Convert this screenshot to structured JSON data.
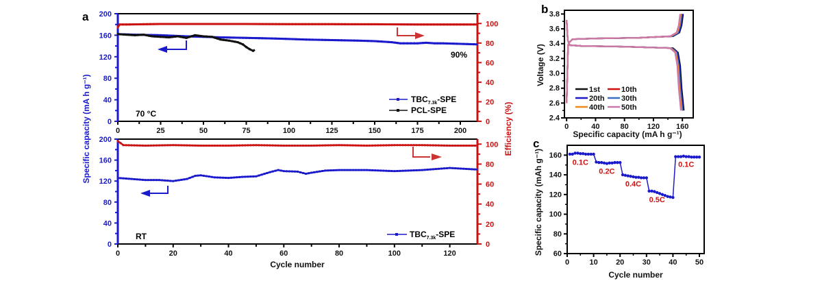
{
  "chart_data": [
    {
      "id": "a-top",
      "panel_label": "a",
      "type": "line",
      "xlabel": "",
      "ylabel": "Specific capacity (mA h g⁻¹)",
      "y2label": "Efficiency (%)",
      "xlim": [
        0,
        210
      ],
      "ylim": [
        0,
        200
      ],
      "y2lim": [
        0,
        110
      ],
      "xticks": [
        0,
        25,
        50,
        75,
        100,
        125,
        150,
        175,
        200
      ],
      "yticks": [
        0,
        40,
        80,
        120,
        160,
        200
      ],
      "y2ticks": [
        0,
        20,
        40,
        60,
        80,
        100
      ],
      "annotations": [
        "70 °C",
        "90%"
      ],
      "legend": {
        "position": "bottom-right",
        "entries": [
          "TBC7.3k-SPE",
          "PCL-SPE"
        ]
      },
      "series": [
        {
          "name": "TBC7.3k-SPE",
          "axis": "left",
          "color": "#1a1acc",
          "x": [
            0,
            10,
            25,
            40,
            50,
            60,
            75,
            90,
            100,
            110,
            125,
            140,
            150,
            160,
            165,
            175,
            180,
            185,
            190,
            200,
            210
          ],
          "y": [
            162,
            161,
            160,
            158,
            157,
            156,
            155,
            154,
            153,
            152,
            151,
            150,
            149,
            147,
            145,
            145,
            146,
            145,
            145,
            144,
            143
          ]
        },
        {
          "name": "PCL-SPE",
          "axis": "left",
          "color": "#111111",
          "x": [
            0,
            5,
            10,
            15,
            20,
            25,
            30,
            35,
            40,
            45,
            50,
            55,
            60,
            65,
            70,
            73,
            75,
            77,
            79,
            80
          ],
          "y": [
            162,
            161,
            160,
            161,
            158,
            157,
            156,
            158,
            155,
            160,
            158,
            157,
            152,
            150,
            147,
            143,
            138,
            134,
            131,
            133
          ]
        },
        {
          "name": "Efficiency",
          "axis": "right",
          "color": "#cc1111",
          "x": [
            0,
            1,
            5,
            25,
            50,
            75,
            100,
            125,
            150,
            175,
            200,
            210
          ],
          "y": [
            96,
            99,
            99,
            99.5,
            99.5,
            99.5,
            99.3,
            99.3,
            99.2,
            99,
            99,
            99
          ]
        }
      ]
    },
    {
      "id": "a-bottom",
      "panel_label": "",
      "type": "line",
      "xlabel": "Cycle number",
      "ylabel": "Specific capacity (mA h g⁻¹)",
      "y2label": "Efficiency (%)",
      "xlim": [
        0,
        130
      ],
      "ylim": [
        0,
        200
      ],
      "y2lim": [
        0,
        105
      ],
      "xticks": [
        0,
        20,
        40,
        60,
        80,
        100,
        120
      ],
      "yticks": [
        0,
        40,
        80,
        120,
        160,
        200
      ],
      "y2ticks": [
        0,
        20,
        40,
        60,
        80,
        100
      ],
      "annotations": [
        "RT"
      ],
      "legend": {
        "position": "bottom-right",
        "entries": [
          "TBC7.3k-SPE"
        ]
      },
      "series": [
        {
          "name": "TBC7.3k-SPE",
          "axis": "left",
          "color": "#1a1acc",
          "x": [
            0,
            5,
            10,
            15,
            20,
            25,
            28,
            30,
            35,
            40,
            45,
            50,
            55,
            58,
            60,
            65,
            68,
            70,
            75,
            80,
            90,
            100,
            110,
            120,
            130
          ],
          "y": [
            126,
            124,
            122,
            122,
            120,
            124,
            130,
            131,
            127,
            126,
            128,
            129,
            137,
            141,
            139,
            138,
            134,
            136,
            140,
            141,
            141,
            139,
            141,
            145,
            142
          ]
        },
        {
          "name": "Efficiency",
          "axis": "right",
          "color": "#cc1111",
          "x": [
            0,
            2,
            10,
            20,
            30,
            40,
            50,
            60,
            70,
            80,
            90,
            100,
            110,
            120,
            130
          ],
          "y": [
            103,
            99,
            98.5,
            99,
            98.5,
            98.5,
            99,
            98.5,
            98.5,
            99,
            98.5,
            99,
            99,
            98.5,
            98.5
          ]
        }
      ]
    },
    {
      "id": "b",
      "panel_label": "b",
      "type": "line",
      "xlabel": "Specific capacity (mA h g⁻¹)",
      "ylabel": "Voltage (V)",
      "xlim": [
        -3,
        175
      ],
      "ylim": [
        2.4,
        3.85
      ],
      "xticks": [
        0,
        40,
        80,
        120,
        160
      ],
      "yticks": [
        2.4,
        2.6,
        2.8,
        3.0,
        3.2,
        3.4,
        3.6,
        3.8
      ],
      "legend": {
        "position": "bottom-left",
        "entries": [
          "1st",
          "10th",
          "20th",
          "30th",
          "40th",
          "50th"
        ]
      },
      "series": [
        {
          "name": "1st",
          "color": "#111111",
          "end_capacity": 162
        },
        {
          "name": "10th",
          "color": "#cc1111",
          "end_capacity": 160
        },
        {
          "name": "20th",
          "color": "#1a1acc",
          "end_capacity": 161
        },
        {
          "name": "30th",
          "color": "#3a6ec0",
          "end_capacity": 160
        },
        {
          "name": "40th",
          "color": "#ee8a1a",
          "end_capacity": 159
        },
        {
          "name": "50th",
          "color": "#cc77aa",
          "end_capacity": 158
        }
      ]
    },
    {
      "id": "c",
      "panel_label": "c",
      "type": "line",
      "title": "Specific capacity (mA h g⁻¹)",
      "xlabel": "Cycle number",
      "ylabel": "Specific capacity (mAh g⁻¹)",
      "xlim": [
        0,
        51
      ],
      "ylim": [
        60,
        170
      ],
      "xticks": [
        0,
        10,
        20,
        30,
        40,
        50
      ],
      "yticks": [
        60,
        80,
        100,
        120,
        140,
        160
      ],
      "rate_labels": [
        {
          "text": "0.1C",
          "x": 5,
          "y": 153
        },
        {
          "text": "0.2C",
          "x": 15,
          "y": 144
        },
        {
          "text": "0.4C",
          "x": 25,
          "y": 131
        },
        {
          "text": "0.5C",
          "x": 34,
          "y": 115
        },
        {
          "text": "0.1C",
          "x": 45,
          "y": 151
        }
      ],
      "series": [
        {
          "name": "TBC7.3k-SPE",
          "color": "#1a1acc",
          "x": [
            1,
            2,
            3,
            4,
            5,
            6,
            7,
            8,
            9,
            10,
            11,
            12,
            13,
            14,
            15,
            16,
            17,
            18,
            19,
            20,
            21,
            22,
            23,
            24,
            25,
            26,
            27,
            28,
            29,
            30,
            31,
            32,
            33,
            34,
            35,
            36,
            37,
            38,
            39,
            40,
            41,
            42,
            43,
            44,
            45,
            46,
            47,
            48,
            49,
            50
          ],
          "y": [
            161,
            161,
            162,
            162,
            161.5,
            161.5,
            161,
            161,
            161,
            161,
            153,
            152.5,
            152.5,
            152,
            151.5,
            152,
            152,
            152.5,
            152.5,
            152.5,
            140,
            139.5,
            139,
            138.5,
            138,
            137.5,
            137.5,
            137,
            137,
            137,
            123.5,
            123.5,
            123,
            122,
            121,
            120,
            119,
            118,
            117.5,
            117,
            158.5,
            158.5,
            158.5,
            159,
            158.5,
            158.5,
            158,
            158,
            158,
            158
          ]
        }
      ]
    }
  ],
  "texts": {
    "panel_a": "a",
    "panel_b": "b",
    "panel_c": "c",
    "a_ylabel": "Specific capacity (mA h g⁻¹)",
    "a_y2label": "Efficiency (%)",
    "a_xlabel": "Cycle number",
    "a_top_temp": "70 °C",
    "a_top_retention": "90%",
    "a_bottom_temp": "RT",
    "legend_tbc_main": "TBC",
    "legend_tbc_sub": "7.3k",
    "legend_tbc_suffix": "-SPE",
    "legend_pcl": "PCL-SPE",
    "b_ylabel": "Voltage (V)",
    "b_xlabel": "Specific capacity (mA h g⁻¹)",
    "c_ylabel": "Specific capacity (mAh g⁻¹)",
    "c_xlabel": "Cycle number"
  }
}
